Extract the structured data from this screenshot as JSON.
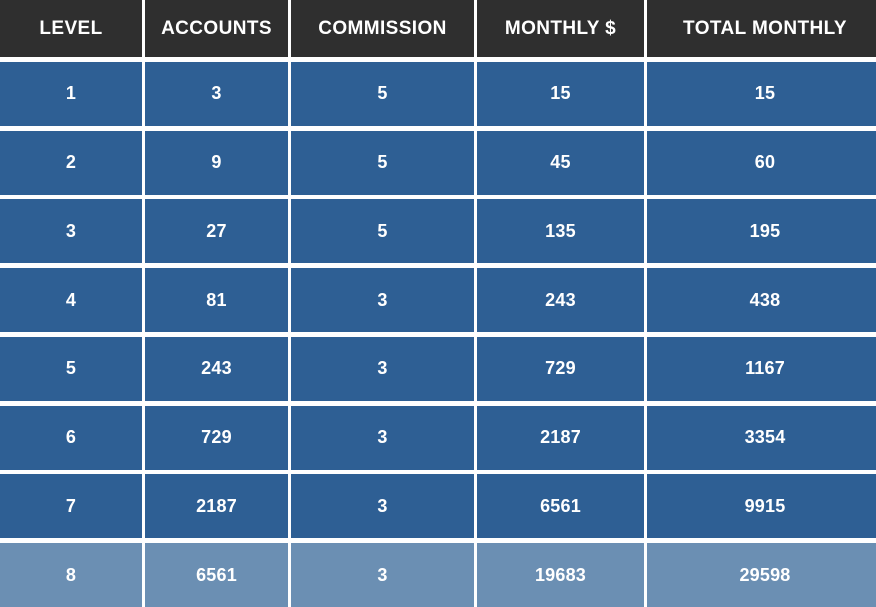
{
  "table": {
    "headers": [
      "LEVEL",
      "ACCOUNTS",
      "COMMISSION",
      "MONTHLY $",
      "TOTAL MONTHLY"
    ],
    "rows": [
      [
        "1",
        "3",
        "5",
        "15",
        "15"
      ],
      [
        "2",
        "9",
        "5",
        "45",
        "60"
      ],
      [
        "3",
        "27",
        "5",
        "135",
        "195"
      ],
      [
        "4",
        "81",
        "3",
        "243",
        "438"
      ],
      [
        "5",
        "243",
        "3",
        "729",
        "1167"
      ],
      [
        "6",
        "729",
        "3",
        "2187",
        "3354"
      ],
      [
        "7",
        "2187",
        "3",
        "6561",
        "9915"
      ],
      [
        "8",
        "6561",
        "3",
        "19683",
        "29598"
      ]
    ]
  },
  "colors": {
    "header_bg": "#2f2f2f",
    "row_bg": "#2e5f94",
    "last_row_bg": "#6b8fb3",
    "text": "#ffffff"
  }
}
